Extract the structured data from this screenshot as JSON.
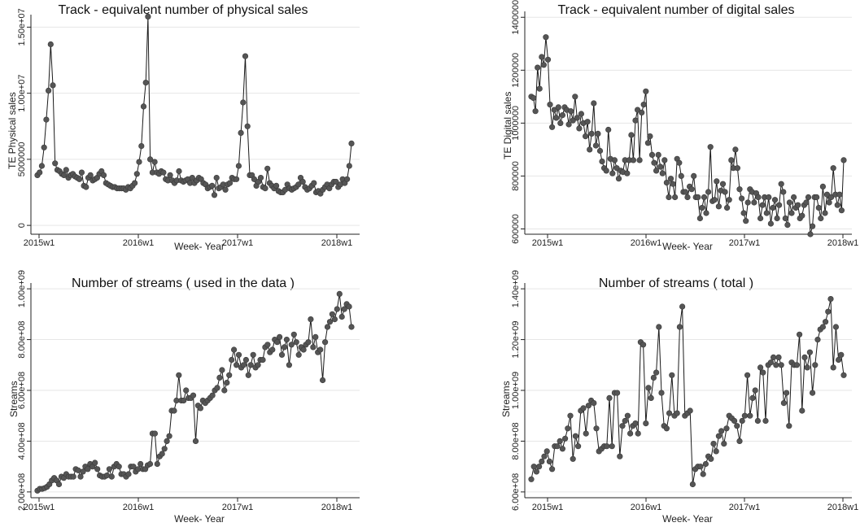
{
  "chart_data": [
    {
      "type": "line",
      "title": "Track - equivalent number of physical sales",
      "xlabel": "Week- Year",
      "ylabel": "TE Physical sales",
      "x_ticks": [
        "2015w1",
        "2016w1",
        "2017w1",
        "2018w1"
      ],
      "y_ticks": [
        0,
        5000000,
        10000000,
        15000000
      ],
      "y_tick_labels": [
        "0",
        "5000000",
        "1.00e+07",
        "1.50e+07"
      ],
      "ylim": [
        -300000,
        15700000
      ],
      "grid": true,
      "series": [
        {
          "values": [
            3800000,
            4000000,
            4500000,
            5900000,
            8000000,
            10200000,
            13700000,
            10600000,
            4700000,
            4200000,
            4100000,
            3900000,
            3800000,
            4200000,
            3600000,
            3800000,
            3900000,
            3700000,
            3600000,
            3500000,
            4000000,
            3000000,
            2900000,
            3600000,
            3800000,
            3400000,
            3500000,
            3600000,
            3900000,
            4100000,
            3800000,
            3200000,
            3100000,
            3000000,
            2900000,
            2900000,
            2800000,
            2800000,
            2800000,
            2800000,
            2700000,
            2900000,
            2800000,
            3000000,
            3200000,
            3900000,
            4800000,
            6000000,
            9000000,
            10800000,
            15800000,
            5000000,
            4000000,
            4800000,
            4000000,
            3900000,
            4100000,
            4000000,
            3500000,
            3400000,
            3800000,
            3400000,
            3200000,
            3400000,
            4100000,
            3400000,
            3300000,
            3400000,
            3500000,
            3200000,
            3600000,
            3200000,
            3400000,
            3600000,
            3500000,
            3200000,
            3100000,
            2800000,
            2900000,
            3000000,
            2300000,
            3600000,
            2800000,
            2900000,
            3100000,
            2700000,
            3100000,
            3200000,
            3600000,
            3500000,
            3500000,
            4500000,
            7000000,
            9300000,
            12800000,
            7500000,
            3800000,
            3800000,
            3500000,
            3000000,
            3300000,
            3600000,
            2900000,
            2800000,
            4300000,
            3200000,
            3000000,
            2800000,
            3000000,
            2600000,
            2500000,
            2500000,
            2700000,
            3100000,
            2800000,
            2700000,
            2800000,
            2900000,
            3100000,
            3600000,
            3300000,
            2900000,
            2700000,
            2800000,
            3000000,
            3200000,
            2500000,
            2600000,
            2400000,
            2700000,
            2900000,
            3100000,
            2800000,
            3100000,
            3300000,
            3300000,
            2900000,
            3100000,
            3500000,
            3200000,
            3500000,
            4500000,
            6200000
          ]
        }
      ]
    },
    {
      "type": "line",
      "title": "Track - equivalent number of digital sales",
      "xlabel": "Week- Year",
      "ylabel": "TE Digital sales",
      "x_ticks": [
        "2015w1",
        "2016w1",
        "2017w1",
        "2018w1"
      ],
      "y_ticks": [
        600000,
        800000,
        1000000,
        1200000,
        1400000
      ],
      "y_tick_labels": [
        "600000",
        "800000",
        "1000000",
        "1200000",
        "1400000"
      ],
      "ylim": [
        580000,
        1410000
      ],
      "grid": true,
      "series": [
        {
          "values": [
            1100000,
            1095000,
            1045000,
            1210000,
            1130000,
            1250000,
            1220000,
            1325000,
            1240000,
            1070000,
            985000,
            1050000,
            1020000,
            1060000,
            1000000,
            1030000,
            1060000,
            1050000,
            995000,
            1045000,
            1010000,
            1100000,
            1020000,
            980000,
            1035000,
            1000000,
            950000,
            1005000,
            900000,
            960000,
            1075000,
            915000,
            960000,
            895000,
            855000,
            830000,
            820000,
            975000,
            865000,
            810000,
            860000,
            830000,
            790000,
            820000,
            815000,
            860000,
            810000,
            860000,
            955000,
            860000,
            1010000,
            1050000,
            860000,
            1040000,
            1070000,
            1120000,
            925000,
            950000,
            880000,
            850000,
            820000,
            880000,
            835000,
            810000,
            860000,
            775000,
            720000,
            790000,
            770000,
            720000,
            865000,
            850000,
            800000,
            740000,
            740000,
            720000,
            760000,
            750000,
            800000,
            720000,
            720000,
            640000,
            680000,
            720000,
            660000,
            740000,
            910000,
            705000,
            710000,
            780000,
            685000,
            745000,
            770000,
            740000,
            680000,
            710000,
            860000,
            830000,
            900000,
            830000,
            750000,
            715000,
            660000,
            630000,
            700000,
            750000,
            740000,
            700000,
            735000,
            720000,
            640000,
            690000,
            720000,
            660000,
            720000,
            620000,
            680000,
            710000,
            640000,
            690000,
            770000,
            740000,
            640000,
            615000,
            700000,
            660000,
            720000,
            680000,
            690000,
            640000,
            650000,
            690000,
            700000,
            720000,
            580000,
            610000,
            720000,
            720000,
            680000,
            640000,
            760000,
            660000,
            730000,
            700000,
            720000,
            830000,
            730000,
            690000,
            730000,
            670000,
            860000
          ]
        }
      ]
    },
    {
      "type": "line",
      "title": "Number of streams ( used in the data )",
      "xlabel": "Week- Year",
      "ylabel": "Streams",
      "x_ticks": [
        "2015w1",
        "2016w1",
        "2017w1",
        "2018w1"
      ],
      "y_ticks": [
        200000000,
        400000000,
        600000000,
        800000000,
        1000000000
      ],
      "y_tick_labels": [
        "2.00e+08",
        "4.00e+08",
        "6.00e+08",
        "8.00e+08",
        "1.00e+09"
      ],
      "ylim": [
        190000000,
        1010000000
      ],
      "grid": true,
      "series": [
        {
          "values": [
            205000000,
            212000000,
            212000000,
            215000000,
            220000000,
            230000000,
            245000000,
            255000000,
            245000000,
            230000000,
            260000000,
            255000000,
            270000000,
            260000000,
            260000000,
            260000000,
            290000000,
            285000000,
            260000000,
            280000000,
            300000000,
            290000000,
            310000000,
            300000000,
            315000000,
            290000000,
            265000000,
            260000000,
            260000000,
            265000000,
            290000000,
            260000000,
            300000000,
            310000000,
            300000000,
            270000000,
            270000000,
            260000000,
            270000000,
            300000000,
            300000000,
            280000000,
            290000000,
            310000000,
            290000000,
            290000000,
            305000000,
            310000000,
            430000000,
            430000000,
            310000000,
            340000000,
            350000000,
            370000000,
            400000000,
            420000000,
            520000000,
            520000000,
            560000000,
            660000000,
            560000000,
            560000000,
            600000000,
            570000000,
            570000000,
            580000000,
            400000000,
            540000000,
            530000000,
            560000000,
            550000000,
            560000000,
            570000000,
            580000000,
            600000000,
            610000000,
            650000000,
            680000000,
            600000000,
            630000000,
            660000000,
            720000000,
            760000000,
            700000000,
            740000000,
            690000000,
            700000000,
            720000000,
            660000000,
            700000000,
            740000000,
            690000000,
            700000000,
            720000000,
            720000000,
            770000000,
            780000000,
            750000000,
            760000000,
            800000000,
            790000000,
            810000000,
            740000000,
            770000000,
            800000000,
            700000000,
            780000000,
            820000000,
            790000000,
            740000000,
            770000000,
            760000000,
            780000000,
            790000000,
            880000000,
            770000000,
            810000000,
            750000000,
            760000000,
            640000000,
            790000000,
            850000000,
            870000000,
            900000000,
            880000000,
            920000000,
            980000000,
            890000000,
            920000000,
            940000000,
            930000000,
            850000000
          ]
        }
      ]
    },
    {
      "type": "line",
      "title": "Number of streams ( total )",
      "xlabel": "Week- Year",
      "ylabel": "Streams",
      "x_ticks": [
        "2015w1",
        "2016w1",
        "2017w1",
        "2018w1"
      ],
      "y_ticks": [
        600000000,
        800000000,
        1000000000,
        1200000000,
        1400000000
      ],
      "y_tick_labels": [
        "6.00e+08",
        "8.00e+08",
        "1.00e+09",
        "1.20e+09",
        "1.40e+09"
      ],
      "ylim": [
        590000000,
        1410000000
      ],
      "grid": true,
      "series": [
        {
          "values": [
            650000000,
            700000000,
            680000000,
            700000000,
            720000000,
            740000000,
            760000000,
            720000000,
            690000000,
            780000000,
            780000000,
            800000000,
            770000000,
            810000000,
            850000000,
            900000000,
            730000000,
            820000000,
            780000000,
            920000000,
            930000000,
            830000000,
            940000000,
            960000000,
            950000000,
            850000000,
            760000000,
            770000000,
            780000000,
            780000000,
            970000000,
            780000000,
            990000000,
            990000000,
            740000000,
            860000000,
            880000000,
            900000000,
            830000000,
            860000000,
            870000000,
            830000000,
            1190000000,
            1180000000,
            870000000,
            1010000000,
            970000000,
            1050000000,
            1070000000,
            1250000000,
            990000000,
            860000000,
            850000000,
            910000000,
            1060000000,
            900000000,
            910000000,
            1250000000,
            1330000000,
            900000000,
            910000000,
            920000000,
            630000000,
            690000000,
            700000000,
            700000000,
            670000000,
            710000000,
            740000000,
            730000000,
            790000000,
            760000000,
            820000000,
            840000000,
            790000000,
            850000000,
            900000000,
            890000000,
            880000000,
            860000000,
            800000000,
            880000000,
            900000000,
            1060000000,
            900000000,
            970000000,
            1000000000,
            880000000,
            1090000000,
            1070000000,
            880000000,
            1100000000,
            1110000000,
            1130000000,
            1100000000,
            1130000000,
            1100000000,
            950000000,
            990000000,
            860000000,
            1110000000,
            1100000000,
            1100000000,
            1220000000,
            920000000,
            1130000000,
            1090000000,
            1150000000,
            990000000,
            1100000000,
            1200000000,
            1240000000,
            1250000000,
            1270000000,
            1310000000,
            1360000000,
            1090000000,
            1250000000,
            1120000000,
            1140000000,
            1060000000
          ]
        }
      ]
    }
  ]
}
